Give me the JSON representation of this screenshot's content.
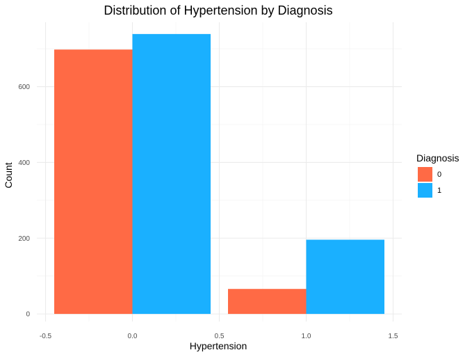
{
  "chart_data": {
    "type": "bar",
    "title": "Distribution of Hypertension by Diagnosis",
    "xlabel": "Hypertension",
    "ylabel": "Count",
    "xlim": [
      -0.55,
      1.55
    ],
    "ylim": [
      -20,
      770
    ],
    "x_ticks": [
      -0.5,
      0.0,
      0.5,
      1.0,
      1.5
    ],
    "x_tick_labels": [
      "-0.5",
      "0.0",
      "0.5",
      "1.0",
      "1.5"
    ],
    "y_ticks": [
      0,
      200,
      400,
      600
    ],
    "y_tick_labels": [
      "0",
      "200",
      "400",
      "600"
    ],
    "grid": true,
    "legend_position": "right",
    "legend_title": "Diagnosis",
    "categories": [
      0,
      1
    ],
    "series": [
      {
        "name": "0",
        "color": "#ff6a45",
        "values": [
          698,
          66
        ]
      },
      {
        "name": "1",
        "color": "#1ab0ff",
        "values": [
          739,
          196
        ]
      }
    ]
  }
}
